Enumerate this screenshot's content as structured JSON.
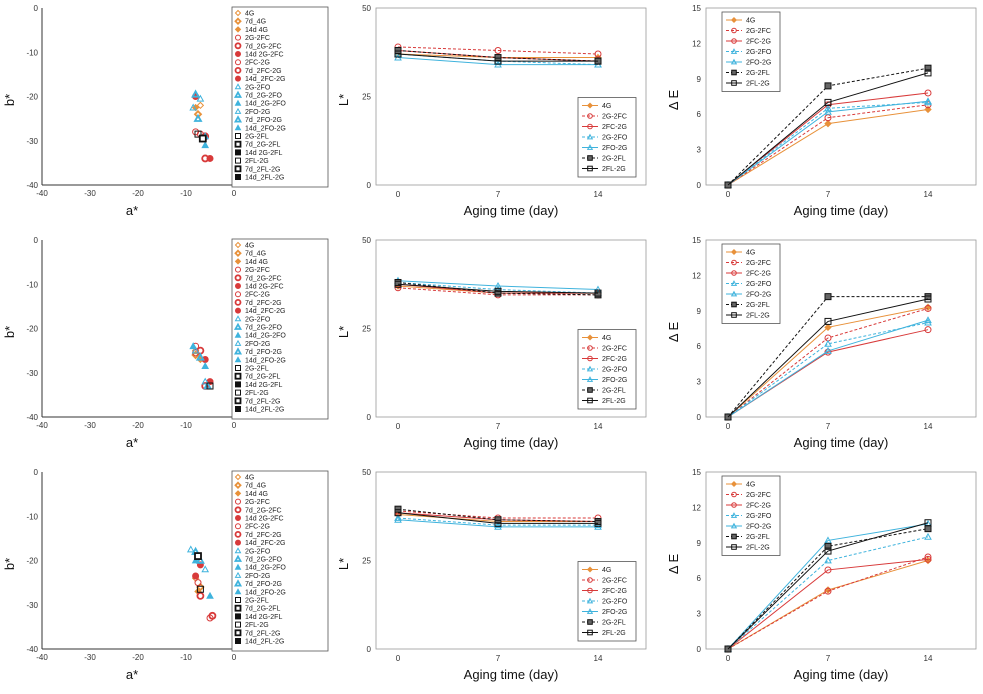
{
  "colors": {
    "4G": "#e8913a",
    "FC": "#d83a3a",
    "FO": "#3fb3dd",
    "FL": "#111111"
  },
  "scatter_legend_lists": [
    [
      "4G",
      "7d_4G",
      "14d 4G",
      "2G-2FC",
      "7d_2G-2FC",
      "14d 2G-2FC",
      "2FC-2G",
      "7d_2FC-2G",
      "14d_2FC-2G",
      "2G-2FO",
      "7d_2G-2FO",
      "14d_2G-2FO",
      "2FO-2G",
      "7d_2FO-2G",
      "14d_2FO-2G",
      "2G-2FL",
      "7d_2G-2FL",
      "14d 2G-2FL",
      "2FL-2G",
      "7d_2FL-2G",
      "14d_2FL-2G"
    ],
    [
      "4G",
      "7d_4G",
      "14d 4G",
      "2G-2FC",
      "7d_2G-2FC",
      "14d 2G-2FC",
      "2FC-2G",
      "7d_2FC-2G",
      "14d_2FC-2G",
      "2G-2FO",
      "7d_2G-2FO",
      "14d_2G-2FO",
      "2FO-2G",
      "7d_2FO-2G",
      "14d_2FO-2G",
      "2G-2FL",
      "7d_2G-2FL",
      "14d 2G-2FL",
      "2FL-2G",
      "7d_2FL-2G",
      "14d_2FL-2G"
    ],
    [
      "4G",
      "7d_4G",
      "14d 4G",
      "2G-2FC",
      "7d_2G-2FC",
      "14d 2G-2FC",
      "2FC-2G",
      "7d_2FC-2G",
      "14d_2FC-2G",
      "2G-2FO",
      "7d_2G-2FO",
      "14d_2G-2FO",
      "2FO-2G",
      "7d_2FO-2G",
      "14d_2FO-2G",
      "2G-2FL",
      "7d_2G-2FL",
      "14d 2G-2FL",
      "2FL-2G",
      "7d_2FL-2G",
      "14d_2FL-2G"
    ]
  ],
  "line_legend_lists": [
    [
      "4G",
      "2G-2FC",
      "2FC-2G",
      "2G-2FO",
      "2FO-2G",
      "2G-2FL",
      "2FL-2G"
    ],
    [
      "4G",
      "2G-2FC",
      "2FC-2G",
      "2G-2FO",
      "2FO-2G",
      "2G-2FL",
      "2FL-2G"
    ],
    [
      "4G",
      "2G-2FC",
      "2FC-2G",
      "2G-2FO",
      "2FO-2G",
      "2G-2FL",
      "2FL-2G"
    ]
  ],
  "chart_data": [
    {
      "type": "scatter",
      "xlabel": "a*",
      "ylabel": "b*",
      "xlim": [
        -40,
        0
      ],
      "ylim": [
        -40,
        0
      ],
      "xticks": [
        "-40",
        "-30",
        "-20",
        "-10",
        "0"
      ],
      "yticks": [
        "0",
        "-10",
        "-20",
        "-30",
        "-40"
      ],
      "points": [
        [
          -7,
          -22
        ],
        [
          -7.5,
          -24
        ],
        [
          -8,
          -22.5
        ],
        [
          -8,
          -28
        ],
        [
          -6,
          -34
        ],
        [
          -5,
          -34
        ],
        [
          -7,
          -28.5
        ],
        [
          -6,
          -29
        ],
        [
          -8,
          -20
        ],
        [
          -7,
          -20.5
        ],
        [
          -8,
          -19.5
        ],
        [
          -6,
          -29
        ],
        [
          -8.5,
          -22.5
        ],
        [
          -7.5,
          -25
        ],
        [
          -6,
          -31
        ],
        [
          -7.5,
          -28.5
        ],
        [
          -6.5,
          -29.5
        ]
      ]
    },
    {
      "type": "line",
      "xlabel": "Aging time (day)",
      "ylabel": "L*",
      "x": [
        0,
        7,
        14
      ],
      "ylim": [
        0,
        50
      ],
      "xticks": [
        "0",
        "7",
        "14"
      ],
      "yticks": [
        "0",
        "25",
        "50"
      ],
      "legend": "bottom-right",
      "series": [
        {
          "name": "4G",
          "values": [
            37,
            36,
            36
          ]
        },
        {
          "name": "2G-2FC",
          "values": [
            39,
            38,
            37
          ]
        },
        {
          "name": "2FC-2G",
          "values": [
            38,
            36,
            35
          ]
        },
        {
          "name": "2G-2FO",
          "values": [
            37,
            35,
            34
          ]
        },
        {
          "name": "2FO-2G",
          "values": [
            36,
            34,
            34
          ]
        },
        {
          "name": "2G-2FL",
          "values": [
            38,
            36,
            35
          ]
        },
        {
          "name": "2FL-2G",
          "values": [
            37,
            35,
            35
          ]
        }
      ]
    },
    {
      "type": "line",
      "xlabel": "Aging time (day)",
      "ylabel": "Δ E",
      "x": [
        0,
        7,
        14
      ],
      "ylim": [
        0,
        15
      ],
      "xticks": [
        "0",
        "7",
        "14"
      ],
      "yticks": [
        "0",
        "3",
        "6",
        "9",
        "12",
        "15"
      ],
      "legend": "top-left",
      "series": [
        {
          "name": "4G",
          "values": [
            0,
            5.2,
            6.4
          ]
        },
        {
          "name": "2G-2FC",
          "values": [
            0,
            5.7,
            6.8
          ]
        },
        {
          "name": "2FC-2G",
          "values": [
            0,
            6.8,
            7.8
          ]
        },
        {
          "name": "2G-2FO",
          "values": [
            0,
            6.5,
            7
          ]
        },
        {
          "name": "2FO-2G",
          "values": [
            0,
            6.2,
            7.1
          ]
        },
        {
          "name": "2G-2FL",
          "values": [
            0,
            8.4,
            9.9
          ]
        },
        {
          "name": "2FL-2G",
          "values": [
            0,
            7,
            9.5
          ]
        }
      ]
    },
    {
      "type": "scatter",
      "xlabel": "a*",
      "ylabel": "b*",
      "xlim": [
        -40,
        0
      ],
      "ylim": [
        -40,
        0
      ],
      "xticks": [
        "-40",
        "-30",
        "-20",
        "-10",
        "0"
      ],
      "yticks": [
        "0",
        "-10",
        "-20",
        "-30",
        "-40"
      ],
      "points": [
        [
          -8,
          -25
        ],
        [
          -8,
          -26
        ],
        [
          -7,
          -27
        ],
        [
          -8,
          -25.5
        ],
        [
          -6,
          -33
        ],
        [
          -5,
          -32
        ],
        [
          -8,
          -24
        ],
        [
          -7,
          -25
        ],
        [
          -6,
          -27
        ],
        [
          -6,
          -32
        ],
        [
          -5.5,
          -33
        ],
        [
          -8.5,
          -24
        ],
        [
          -8,
          -25
        ],
        [
          -7,
          -26.5
        ],
        [
          -6,
          -28.5
        ],
        [
          -5,
          -33
        ]
      ]
    },
    {
      "type": "line",
      "xlabel": "Aging time (day)",
      "ylabel": "L*",
      "x": [
        0,
        7,
        14
      ],
      "ylim": [
        0,
        50
      ],
      "xticks": [
        "0",
        "7",
        "14"
      ],
      "yticks": [
        "0",
        "25",
        "50"
      ],
      "legend": "bottom-right",
      "series": [
        {
          "name": "4G",
          "values": [
            37,
            35,
            35
          ]
        },
        {
          "name": "2G-2FC",
          "values": [
            36.5,
            34.5,
            34.5
          ]
        },
        {
          "name": "2FC-2G",
          "values": [
            37.5,
            35,
            35
          ]
        },
        {
          "name": "2G-2FO",
          "values": [
            38,
            36,
            35
          ]
        },
        {
          "name": "2FO-2G",
          "values": [
            38.5,
            37,
            36
          ]
        },
        {
          "name": "2G-2FL",
          "values": [
            38,
            35,
            34.5
          ]
        },
        {
          "name": "2FL-2G",
          "values": [
            37.5,
            35.5,
            35
          ]
        }
      ]
    },
    {
      "type": "line",
      "xlabel": "Aging time (day)",
      "ylabel": "Δ E",
      "x": [
        0,
        7,
        14
      ],
      "ylim": [
        0,
        15
      ],
      "xticks": [
        "0",
        "7",
        "14"
      ],
      "yticks": [
        "0",
        "3",
        "6",
        "9",
        "12",
        "15"
      ],
      "legend": "top-left",
      "series": [
        {
          "name": "4G",
          "values": [
            0,
            7.6,
            9.3
          ]
        },
        {
          "name": "2G-2FC",
          "values": [
            0,
            6.7,
            9.2
          ]
        },
        {
          "name": "2FC-2G",
          "values": [
            0,
            5.5,
            7.4
          ]
        },
        {
          "name": "2G-2FO",
          "values": [
            0,
            6.2,
            8
          ]
        },
        {
          "name": "2FO-2G",
          "values": [
            0,
            5.6,
            8.2
          ]
        },
        {
          "name": "2G-2FL",
          "values": [
            0,
            10.2,
            10.2
          ]
        },
        {
          "name": "2FL-2G",
          "values": [
            0,
            8.1,
            10
          ]
        }
      ]
    },
    {
      "type": "scatter",
      "xlabel": "a*",
      "ylabel": "b*",
      "xlim": [
        -40,
        0
      ],
      "ylim": [
        -40,
        0
      ],
      "xticks": [
        "-40",
        "-30",
        "-20",
        "-10",
        "0"
      ],
      "yticks": [
        "0",
        "-10",
        "-20",
        "-30",
        "-40"
      ],
      "points": [
        [
          -8,
          -24
        ],
        [
          -7,
          -26
        ],
        [
          -7.5,
          -27
        ],
        [
          -5,
          -33
        ],
        [
          -4.5,
          -32.5
        ],
        [
          -8,
          -23.5
        ],
        [
          -7.5,
          -25
        ],
        [
          -7,
          -28
        ],
        [
          -7,
          -21
        ],
        [
          -6,
          -22
        ],
        [
          -7,
          -20
        ],
        [
          -5,
          -28
        ],
        [
          -9,
          -17.5
        ],
        [
          -8,
          -18
        ],
        [
          -8,
          -20
        ],
        [
          -7,
          -26.5
        ],
        [
          -7.5,
          -19
        ]
      ]
    },
    {
      "type": "line",
      "xlabel": "Aging time (day)",
      "ylabel": "L*",
      "x": [
        0,
        7,
        14
      ],
      "ylim": [
        0,
        50
      ],
      "xticks": [
        "0",
        "7",
        "14"
      ],
      "yticks": [
        "0",
        "25",
        "50"
      ],
      "legend": "bottom-right",
      "series": [
        {
          "name": "4G",
          "values": [
            38,
            36,
            36
          ]
        },
        {
          "name": "2G-2FC",
          "values": [
            39,
            37,
            37
          ]
        },
        {
          "name": "2FC-2G",
          "values": [
            38.5,
            36.5,
            36
          ]
        },
        {
          "name": "2G-2FO",
          "values": [
            37,
            35,
            35
          ]
        },
        {
          "name": "2FO-2G",
          "values": [
            36.5,
            34.5,
            34.5
          ]
        },
        {
          "name": "2G-2FL",
          "values": [
            39.5,
            36.5,
            36
          ]
        },
        {
          "name": "2FL-2G",
          "values": [
            38.5,
            35.5,
            35.5
          ]
        }
      ]
    },
    {
      "type": "line",
      "xlabel": "Aging time (day)",
      "ylabel": "Δ E",
      "x": [
        0,
        7,
        14
      ],
      "ylim": [
        0,
        15
      ],
      "xticks": [
        "0",
        "7",
        "14"
      ],
      "yticks": [
        "0",
        "3",
        "6",
        "9",
        "12",
        "15"
      ],
      "legend": "top-left",
      "series": [
        {
          "name": "4G",
          "values": [
            0,
            5,
            7.5
          ]
        },
        {
          "name": "2G-2FC",
          "values": [
            0,
            4.9,
            7.8
          ]
        },
        {
          "name": "2FC-2G",
          "values": [
            0,
            6.7,
            7.6
          ]
        },
        {
          "name": "2G-2FO",
          "values": [
            0,
            7.5,
            9.5
          ]
        },
        {
          "name": "2FO-2G",
          "values": [
            0,
            9.2,
            10.6
          ]
        },
        {
          "name": "2G-2FL",
          "values": [
            0,
            8.7,
            10.2
          ]
        },
        {
          "name": "2FL-2G",
          "values": [
            0,
            8.3,
            10.7
          ]
        }
      ]
    }
  ]
}
